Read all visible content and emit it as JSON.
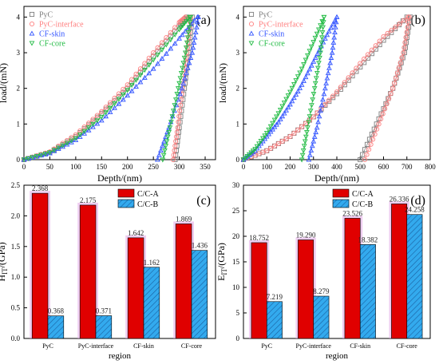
{
  "colors": {
    "pyc": "#7f7f7f",
    "pyc_interface": "#ff8080",
    "cf_skin": "#3355ff",
    "cf_core": "#22bb44",
    "cc_a": "#e00000",
    "cc_b": "#33aaee",
    "highlight": "#e2a6e6"
  },
  "chart_data": [
    {
      "type": "line",
      "panel_label": "(a)",
      "xlabel": "Depth/(nm)",
      "ylabel": "load/(mN)",
      "xlim": [
        0,
        370
      ],
      "ylim": [
        0,
        4.3
      ],
      "xticks": [
        "0",
        "50",
        "100",
        "150",
        "200",
        "250",
        "300",
        "350"
      ],
      "yticks": [
        "0",
        "1",
        "2",
        "3",
        "4"
      ],
      "legend_position": "top-left",
      "series": [
        {
          "name": "PyC",
          "color_key": "pyc",
          "marker": "square",
          "loading": {
            "x": [
              0,
              50,
              100,
              150,
              200,
              250,
              300,
              315
            ],
            "y": [
              0,
              0.2,
              0.65,
              1.3,
              2.0,
              2.9,
              3.75,
              4.0
            ]
          },
          "unloading": {
            "x": [
              325,
              318,
              310,
              300,
              292
            ],
            "y": [
              4.0,
              3.0,
              2.0,
              0.9,
              0
            ]
          }
        },
        {
          "name": "PyC-interface",
          "color_key": "pyc_interface",
          "marker": "circle",
          "loading": {
            "x": [
              0,
              50,
              100,
              150,
              200,
              250,
              300,
              312
            ],
            "y": [
              0,
              0.22,
              0.7,
              1.35,
              2.1,
              3.0,
              3.85,
              4.0
            ]
          },
          "unloading": {
            "x": [
              322,
              315,
              306,
              297,
              288
            ],
            "y": [
              4.0,
              3.0,
              2.0,
              0.9,
              0
            ]
          }
        },
        {
          "name": "CF-skin",
          "color_key": "cf_skin",
          "marker": "triangle-up",
          "loading": {
            "x": [
              0,
              50,
              100,
              150,
              200,
              250,
              300,
              335
            ],
            "y": [
              0,
              0.18,
              0.55,
              1.1,
              1.8,
              2.55,
              3.4,
              4.0
            ]
          },
          "unloading": {
            "x": [
              337,
              325,
              305,
              280,
              258
            ],
            "y": [
              4.0,
              3.0,
              2.0,
              0.9,
              0
            ]
          }
        },
        {
          "name": "CF-core",
          "color_key": "cf_core",
          "marker": "triangle-down",
          "loading": {
            "x": [
              0,
              50,
              100,
              150,
              200,
              250,
              300,
              320
            ],
            "y": [
              0,
              0.2,
              0.6,
              1.2,
              1.95,
              2.8,
              3.65,
              4.0
            ]
          },
          "unloading": {
            "x": [
              322,
              312,
              298,
              282,
              268
            ],
            "y": [
              4.0,
              3.0,
              2.0,
              0.9,
              0
            ]
          }
        }
      ]
    },
    {
      "type": "line",
      "panel_label": "(b)",
      "xlabel": "Depth/(nm)",
      "ylabel": "load/(mN)",
      "xlim": [
        0,
        800
      ],
      "ylim": [
        0,
        4.3
      ],
      "xticks": [
        "0",
        "100",
        "200",
        "300",
        "400",
        "500",
        "600",
        "700",
        "800"
      ],
      "yticks": [
        "0",
        "1",
        "2",
        "3",
        "4"
      ],
      "legend_position": "top-left",
      "series": [
        {
          "name": "PyC",
          "color_key": "pyc",
          "marker": "square",
          "loading": {
            "x": [
              0,
              100,
              200,
              300,
              400,
              500,
              600,
              700
            ],
            "y": [
              0,
              0.25,
              0.65,
              1.2,
              1.85,
              2.6,
              3.35,
              4.0
            ]
          },
          "unloading": {
            "x": [
              715,
              690,
              640,
              570,
              500
            ],
            "y": [
              4.0,
              3.0,
              2.0,
              1.0,
              0
            ]
          }
        },
        {
          "name": "PyC-interface",
          "color_key": "pyc_interface",
          "marker": "circle",
          "loading": {
            "x": [
              0,
              100,
              200,
              300,
              400,
              500,
              600,
              705
            ],
            "y": [
              0,
              0.25,
              0.65,
              1.2,
              1.9,
              2.7,
              3.45,
              4.0
            ]
          },
          "unloading": {
            "x": [
              710,
              685,
              640,
              580,
              520
            ],
            "y": [
              4.0,
              3.0,
              2.0,
              1.0,
              0
            ]
          }
        },
        {
          "name": "CF-skin",
          "color_key": "cf_skin",
          "marker": "triangle-up",
          "loading": {
            "x": [
              0,
              50,
              100,
              150,
              200,
              250,
              300,
              350,
              400
            ],
            "y": [
              0,
              0.25,
              0.65,
              1.05,
              1.55,
              2.1,
              2.75,
              3.4,
              4.0
            ]
          },
          "unloading": {
            "x": [
              400,
              380,
              350,
              315,
              280
            ],
            "y": [
              4.0,
              3.0,
              2.0,
              0.9,
              0
            ]
          }
        },
        {
          "name": "CF-core",
          "color_key": "cf_core",
          "marker": "triangle-down",
          "loading": {
            "x": [
              0,
              50,
              100,
              150,
              200,
              250,
              300,
              345
            ],
            "y": [
              0,
              0.3,
              0.75,
              1.3,
              1.9,
              2.55,
              3.3,
              4.0
            ]
          },
          "unloading": {
            "x": [
              345,
              330,
              305,
              275,
              250
            ],
            "y": [
              4.0,
              3.0,
              2.0,
              0.9,
              0
            ]
          }
        }
      ]
    },
    {
      "type": "bar",
      "panel_label": "(c)",
      "xlabel": "region",
      "ylabel_main": "H",
      "ylabel_sub": "IT",
      "ylabel_unit": "/(GPa)",
      "ylim": [
        0,
        2.5
      ],
      "yticks": [
        "0.0",
        "0.5",
        "1.0",
        "1.5",
        "2.0",
        "2.5"
      ],
      "categories": [
        "PyC",
        "PyC-interface",
        "CF-skin",
        "CF-core"
      ],
      "legend_position": "top-right",
      "series": [
        {
          "name": "C/C-A",
          "color_key": "cc_a",
          "values": [
            2.368,
            2.175,
            1.642,
            1.869
          ],
          "labels": [
            "2.368",
            "2.175",
            "1.642",
            "1.869"
          ]
        },
        {
          "name": "C/C-B",
          "color_key": "cc_b",
          "values": [
            0.368,
            0.371,
            1.162,
            1.436
          ],
          "labels": [
            "0.368",
            "0.371",
            "1.162",
            "1.436"
          ]
        }
      ]
    },
    {
      "type": "bar",
      "panel_label": "(d)",
      "xlabel": "region",
      "ylabel_main": "E",
      "ylabel_sub": "IT",
      "ylabel_unit": "/(GPa)",
      "ylim": [
        0,
        30
      ],
      "yticks": [
        "0",
        "5",
        "10",
        "15",
        "20",
        "25",
        "30"
      ],
      "categories": [
        "PyC",
        "PyC-interface",
        "CF-skin",
        "CF-core"
      ],
      "legend_position": "top-right",
      "series": [
        {
          "name": "C/C-A",
          "color_key": "cc_a",
          "values": [
            18.752,
            19.29,
            23.526,
            26.336
          ],
          "labels": [
            "18.752",
            "19.290",
            "23.526",
            "26.336"
          ]
        },
        {
          "name": "C/C-B",
          "color_key": "cc_b",
          "values": [
            7.219,
            8.279,
            18.382,
            24.258
          ],
          "labels": [
            "7.219",
            "8.279",
            "18.382",
            "24.258"
          ]
        }
      ]
    }
  ]
}
